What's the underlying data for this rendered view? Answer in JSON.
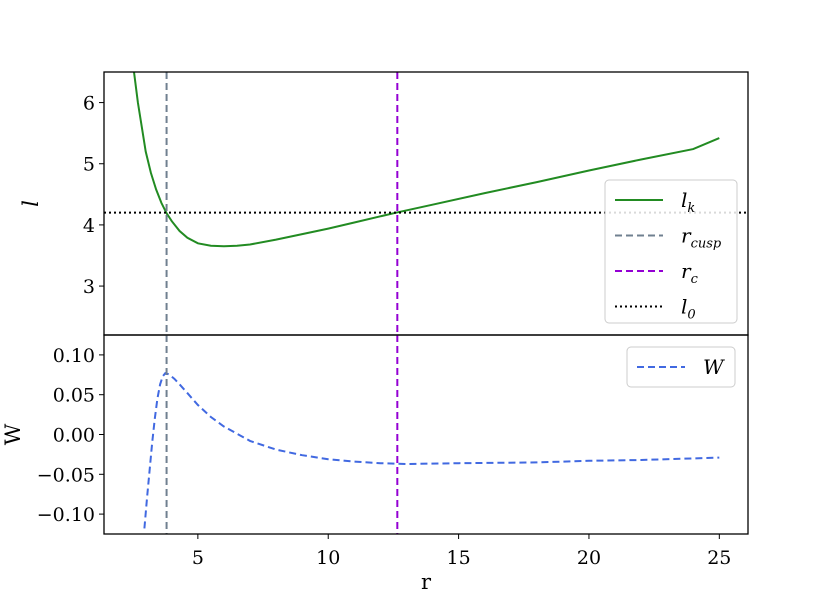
{
  "chart_data": [
    {
      "type": "line",
      "panel": "top",
      "ylabel": "l",
      "xlim": [
        1.4,
        26.1
      ],
      "ylim": [
        2.2,
        6.5
      ],
      "yticks": [
        3,
        4,
        5,
        6
      ],
      "grid": false,
      "legend_position": "center-right",
      "series": [
        {
          "name": "l_k",
          "color": "#228b22",
          "style": "solid",
          "x": [
            2.55,
            2.7,
            2.85,
            3.0,
            3.2,
            3.4,
            3.6,
            3.8,
            4.0,
            4.3,
            4.6,
            5.0,
            5.5,
            6.0,
            6.5,
            7.0,
            8.0,
            9.0,
            10.0,
            11.0,
            12.0,
            12.6,
            14.0,
            16.0,
            18.0,
            20.0,
            22.0,
            24.0,
            25.0
          ],
          "y": [
            6.5,
            6.0,
            5.6,
            5.2,
            4.85,
            4.58,
            4.36,
            4.19,
            4.06,
            3.9,
            3.79,
            3.7,
            3.66,
            3.65,
            3.66,
            3.68,
            3.76,
            3.85,
            3.94,
            4.04,
            4.14,
            4.2,
            4.33,
            4.52,
            4.7,
            4.89,
            5.07,
            5.24,
            5.42
          ]
        },
        {
          "name": "r_cusp",
          "color": "#708090",
          "style": "dashed",
          "vline": 3.8
        },
        {
          "name": "r_c",
          "color": "#9400d3",
          "style": "dashed",
          "vline": 12.65
        },
        {
          "name": "l_0",
          "color": "#000000",
          "style": "dotted",
          "hline": 4.2
        }
      ],
      "legend": [
        {
          "base": "l",
          "sub": "k",
          "color": "#228b22",
          "style": "solid"
        },
        {
          "base": "r",
          "sub": "cusp",
          "color": "#708090",
          "style": "dashed"
        },
        {
          "base": "r",
          "sub": "c",
          "color": "#9400d3",
          "style": "dashed"
        },
        {
          "base": "l",
          "sub": "0",
          "color": "#000000",
          "style": "dotted"
        }
      ]
    },
    {
      "type": "line",
      "panel": "bottom",
      "xlabel": "r",
      "ylabel": "W",
      "xlim": [
        1.4,
        26.1
      ],
      "ylim": [
        -0.125,
        0.125
      ],
      "xticks": [
        5,
        10,
        15,
        20,
        25
      ],
      "yticks": [
        0.1,
        0.05,
        0.0,
        -0.05,
        -0.1
      ],
      "ytick_labels": [
        "0.10",
        "0.05",
        "0.00",
        "−0.05",
        "−0.10"
      ],
      "grid": false,
      "legend_position": "top-right",
      "series": [
        {
          "name": "W",
          "color": "#4169e1",
          "style": "dashed",
          "x": [
            2.95,
            3.05,
            3.15,
            3.25,
            3.35,
            3.45,
            3.55,
            3.65,
            3.75,
            3.85,
            3.95,
            4.1,
            4.3,
            4.6,
            5.0,
            5.5,
            6.0,
            7.0,
            8.0,
            9.0,
            10.0,
            11.0,
            12.0,
            13.0,
            15.0,
            18.0,
            20.0,
            22.0,
            24.0,
            25.0
          ],
          "y": [
            -0.118,
            -0.08,
            -0.045,
            -0.01,
            0.02,
            0.045,
            0.063,
            0.073,
            0.077,
            0.076,
            0.074,
            0.07,
            0.063,
            0.052,
            0.037,
            0.022,
            0.01,
            -0.008,
            -0.019,
            -0.026,
            -0.031,
            -0.034,
            -0.036,
            -0.037,
            -0.036,
            -0.035,
            -0.033,
            -0.032,
            -0.03,
            -0.029
          ]
        },
        {
          "name": "r_cusp",
          "color": "#708090",
          "style": "dashed",
          "vline": 3.8
        },
        {
          "name": "r_c",
          "color": "#9400d3",
          "style": "dashed",
          "vline": 12.65
        }
      ],
      "legend": [
        {
          "base": "W",
          "sub": "",
          "color": "#4169e1",
          "style": "dashed"
        }
      ]
    }
  ]
}
